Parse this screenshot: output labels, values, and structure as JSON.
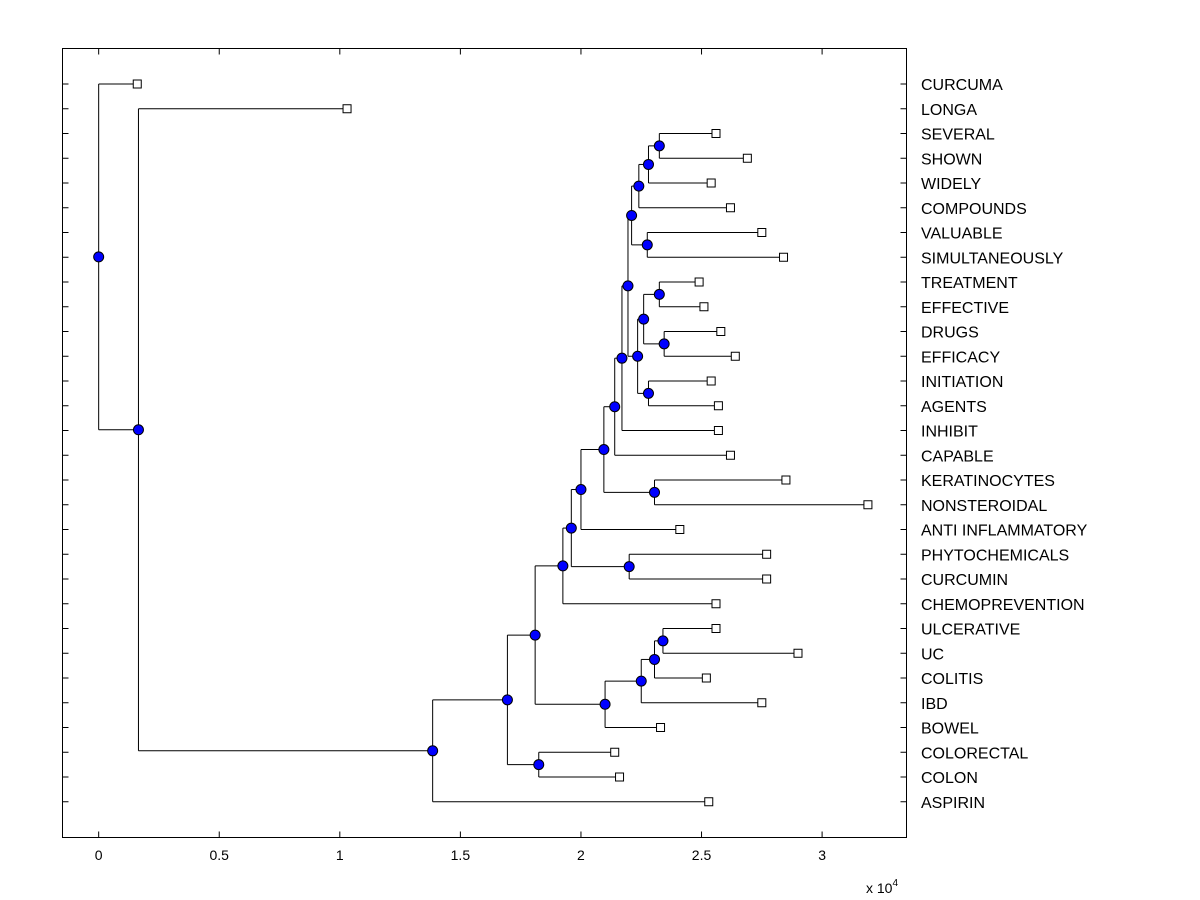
{
  "chart_data": {
    "type": "dendrogram",
    "xlim": [
      -0.15,
      3.35
    ],
    "xticks": [
      0,
      0.5,
      1,
      1.5,
      2,
      2.5,
      3
    ],
    "xtick_labels": [
      "0",
      "0.5",
      "1",
      "1.5",
      "2",
      "2.5",
      "3"
    ],
    "multiplier": {
      "base": "x 10",
      "exponent": "4"
    },
    "node_color": "#0000ff",
    "leaves": [
      {
        "id": "curcuma",
        "label": "CURCUMA",
        "x": 0.16
      },
      {
        "id": "longa",
        "label": "LONGA",
        "x": 1.03
      },
      {
        "id": "several",
        "label": "SEVERAL",
        "x": 2.56
      },
      {
        "id": "shown",
        "label": "SHOWN",
        "x": 2.69
      },
      {
        "id": "widely",
        "label": "WIDELY",
        "x": 2.54
      },
      {
        "id": "compounds",
        "label": "COMPOUNDS",
        "x": 2.62
      },
      {
        "id": "valuable",
        "label": "VALUABLE",
        "x": 2.75
      },
      {
        "id": "simultaneously",
        "label": "SIMULTANEOUSLY",
        "x": 2.84
      },
      {
        "id": "treatment",
        "label": "TREATMENT",
        "x": 2.49
      },
      {
        "id": "effective",
        "label": "EFFECTIVE",
        "x": 2.51
      },
      {
        "id": "drugs",
        "label": "DRUGS",
        "x": 2.58
      },
      {
        "id": "efficacy",
        "label": "EFFICACY",
        "x": 2.64
      },
      {
        "id": "initiation",
        "label": "INITIATION",
        "x": 2.54
      },
      {
        "id": "agents",
        "label": "AGENTS",
        "x": 2.57
      },
      {
        "id": "inhibit",
        "label": "INHIBIT",
        "x": 2.57
      },
      {
        "id": "capable",
        "label": "CAPABLE",
        "x": 2.62
      },
      {
        "id": "keratinocytes",
        "label": "KERATINOCYTES",
        "x": 2.85
      },
      {
        "id": "nonsteroidal",
        "label": "NONSTEROIDAL",
        "x": 3.19
      },
      {
        "id": "anti_inflammatory",
        "label": "ANTI INFLAMMATORY",
        "x": 2.41
      },
      {
        "id": "phytochemicals",
        "label": "PHYTOCHEMICALS",
        "x": 2.77
      },
      {
        "id": "curcumin",
        "label": "CURCUMIN",
        "x": 2.77
      },
      {
        "id": "chemoprevention",
        "label": "CHEMOPREVENTION",
        "x": 2.56
      },
      {
        "id": "ulcerative",
        "label": "ULCERATIVE",
        "x": 2.56
      },
      {
        "id": "uc",
        "label": "UC",
        "x": 2.9
      },
      {
        "id": "colitis",
        "label": "COLITIS",
        "x": 2.52
      },
      {
        "id": "ibd",
        "label": "IBD",
        "x": 2.75
      },
      {
        "id": "bowel",
        "label": "BOWEL",
        "x": 2.33
      },
      {
        "id": "colorectal",
        "label": "COLORECTAL",
        "x": 2.14
      },
      {
        "id": "colon",
        "label": "COLON",
        "x": 2.16
      },
      {
        "id": "aspirin",
        "label": "ASPIRIN",
        "x": 2.53
      }
    ],
    "merges": [
      {
        "id": "n1",
        "x": 2.325,
        "children": [
          "several",
          "shown"
        ]
      },
      {
        "id": "n2",
        "x": 2.28,
        "children": [
          "n1",
          "widely"
        ]
      },
      {
        "id": "n3",
        "x": 2.24,
        "children": [
          "n2",
          "compounds"
        ]
      },
      {
        "id": "n4",
        "x": 2.275,
        "children": [
          "valuable",
          "simultaneously"
        ]
      },
      {
        "id": "n5",
        "x": 2.21,
        "children": [
          "n3",
          "n4"
        ]
      },
      {
        "id": "n6",
        "x": 2.325,
        "children": [
          "treatment",
          "effective"
        ]
      },
      {
        "id": "n7",
        "x": 2.345,
        "children": [
          "drugs",
          "efficacy"
        ]
      },
      {
        "id": "n8",
        "x": 2.26,
        "children": [
          "n6",
          "n7"
        ]
      },
      {
        "id": "n9",
        "x": 2.28,
        "children": [
          "initiation",
          "agents"
        ]
      },
      {
        "id": "n10",
        "x": 2.235,
        "children": [
          "n8",
          "n9"
        ]
      },
      {
        "id": "n11",
        "x": 2.195,
        "children": [
          "n5",
          "n10"
        ]
      },
      {
        "id": "n12",
        "x": 2.17,
        "children": [
          "n11",
          "inhibit"
        ]
      },
      {
        "id": "n13",
        "x": 2.14,
        "children": [
          "n12",
          "capable"
        ]
      },
      {
        "id": "n14",
        "x": 2.305,
        "children": [
          "keratinocytes",
          "nonsteroidal"
        ]
      },
      {
        "id": "n15",
        "x": 2.095,
        "children": [
          "n13",
          "n14"
        ]
      },
      {
        "id": "n16",
        "x": 2.0,
        "children": [
          "n15",
          "anti_inflammatory"
        ]
      },
      {
        "id": "n17",
        "x": 2.2,
        "children": [
          "phytochemicals",
          "curcumin"
        ]
      },
      {
        "id": "n18",
        "x": 1.96,
        "children": [
          "n16",
          "n17"
        ]
      },
      {
        "id": "n19",
        "x": 1.925,
        "children": [
          "n18",
          "chemoprevention"
        ]
      },
      {
        "id": "n20",
        "x": 2.34,
        "children": [
          "ulcerative",
          "uc"
        ]
      },
      {
        "id": "n21",
        "x": 2.305,
        "children": [
          "n20",
          "colitis"
        ]
      },
      {
        "id": "n22",
        "x": 2.25,
        "children": [
          "n21",
          "ibd"
        ]
      },
      {
        "id": "n23",
        "x": 2.1,
        "children": [
          "n22",
          "bowel"
        ]
      },
      {
        "id": "n24",
        "x": 1.81,
        "children": [
          "n19",
          "n23"
        ]
      },
      {
        "id": "n25",
        "x": 1.825,
        "children": [
          "colorectal",
          "colon"
        ]
      },
      {
        "id": "n26",
        "x": 1.695,
        "children": [
          "n24",
          "n25"
        ]
      },
      {
        "id": "n27",
        "x": 1.385,
        "children": [
          "n26",
          "aspirin"
        ]
      },
      {
        "id": "n28",
        "x": 0.165,
        "children": [
          "longa",
          "n27"
        ]
      },
      {
        "id": "root",
        "x": 0.0,
        "children": [
          "curcuma",
          "n28"
        ]
      }
    ]
  }
}
